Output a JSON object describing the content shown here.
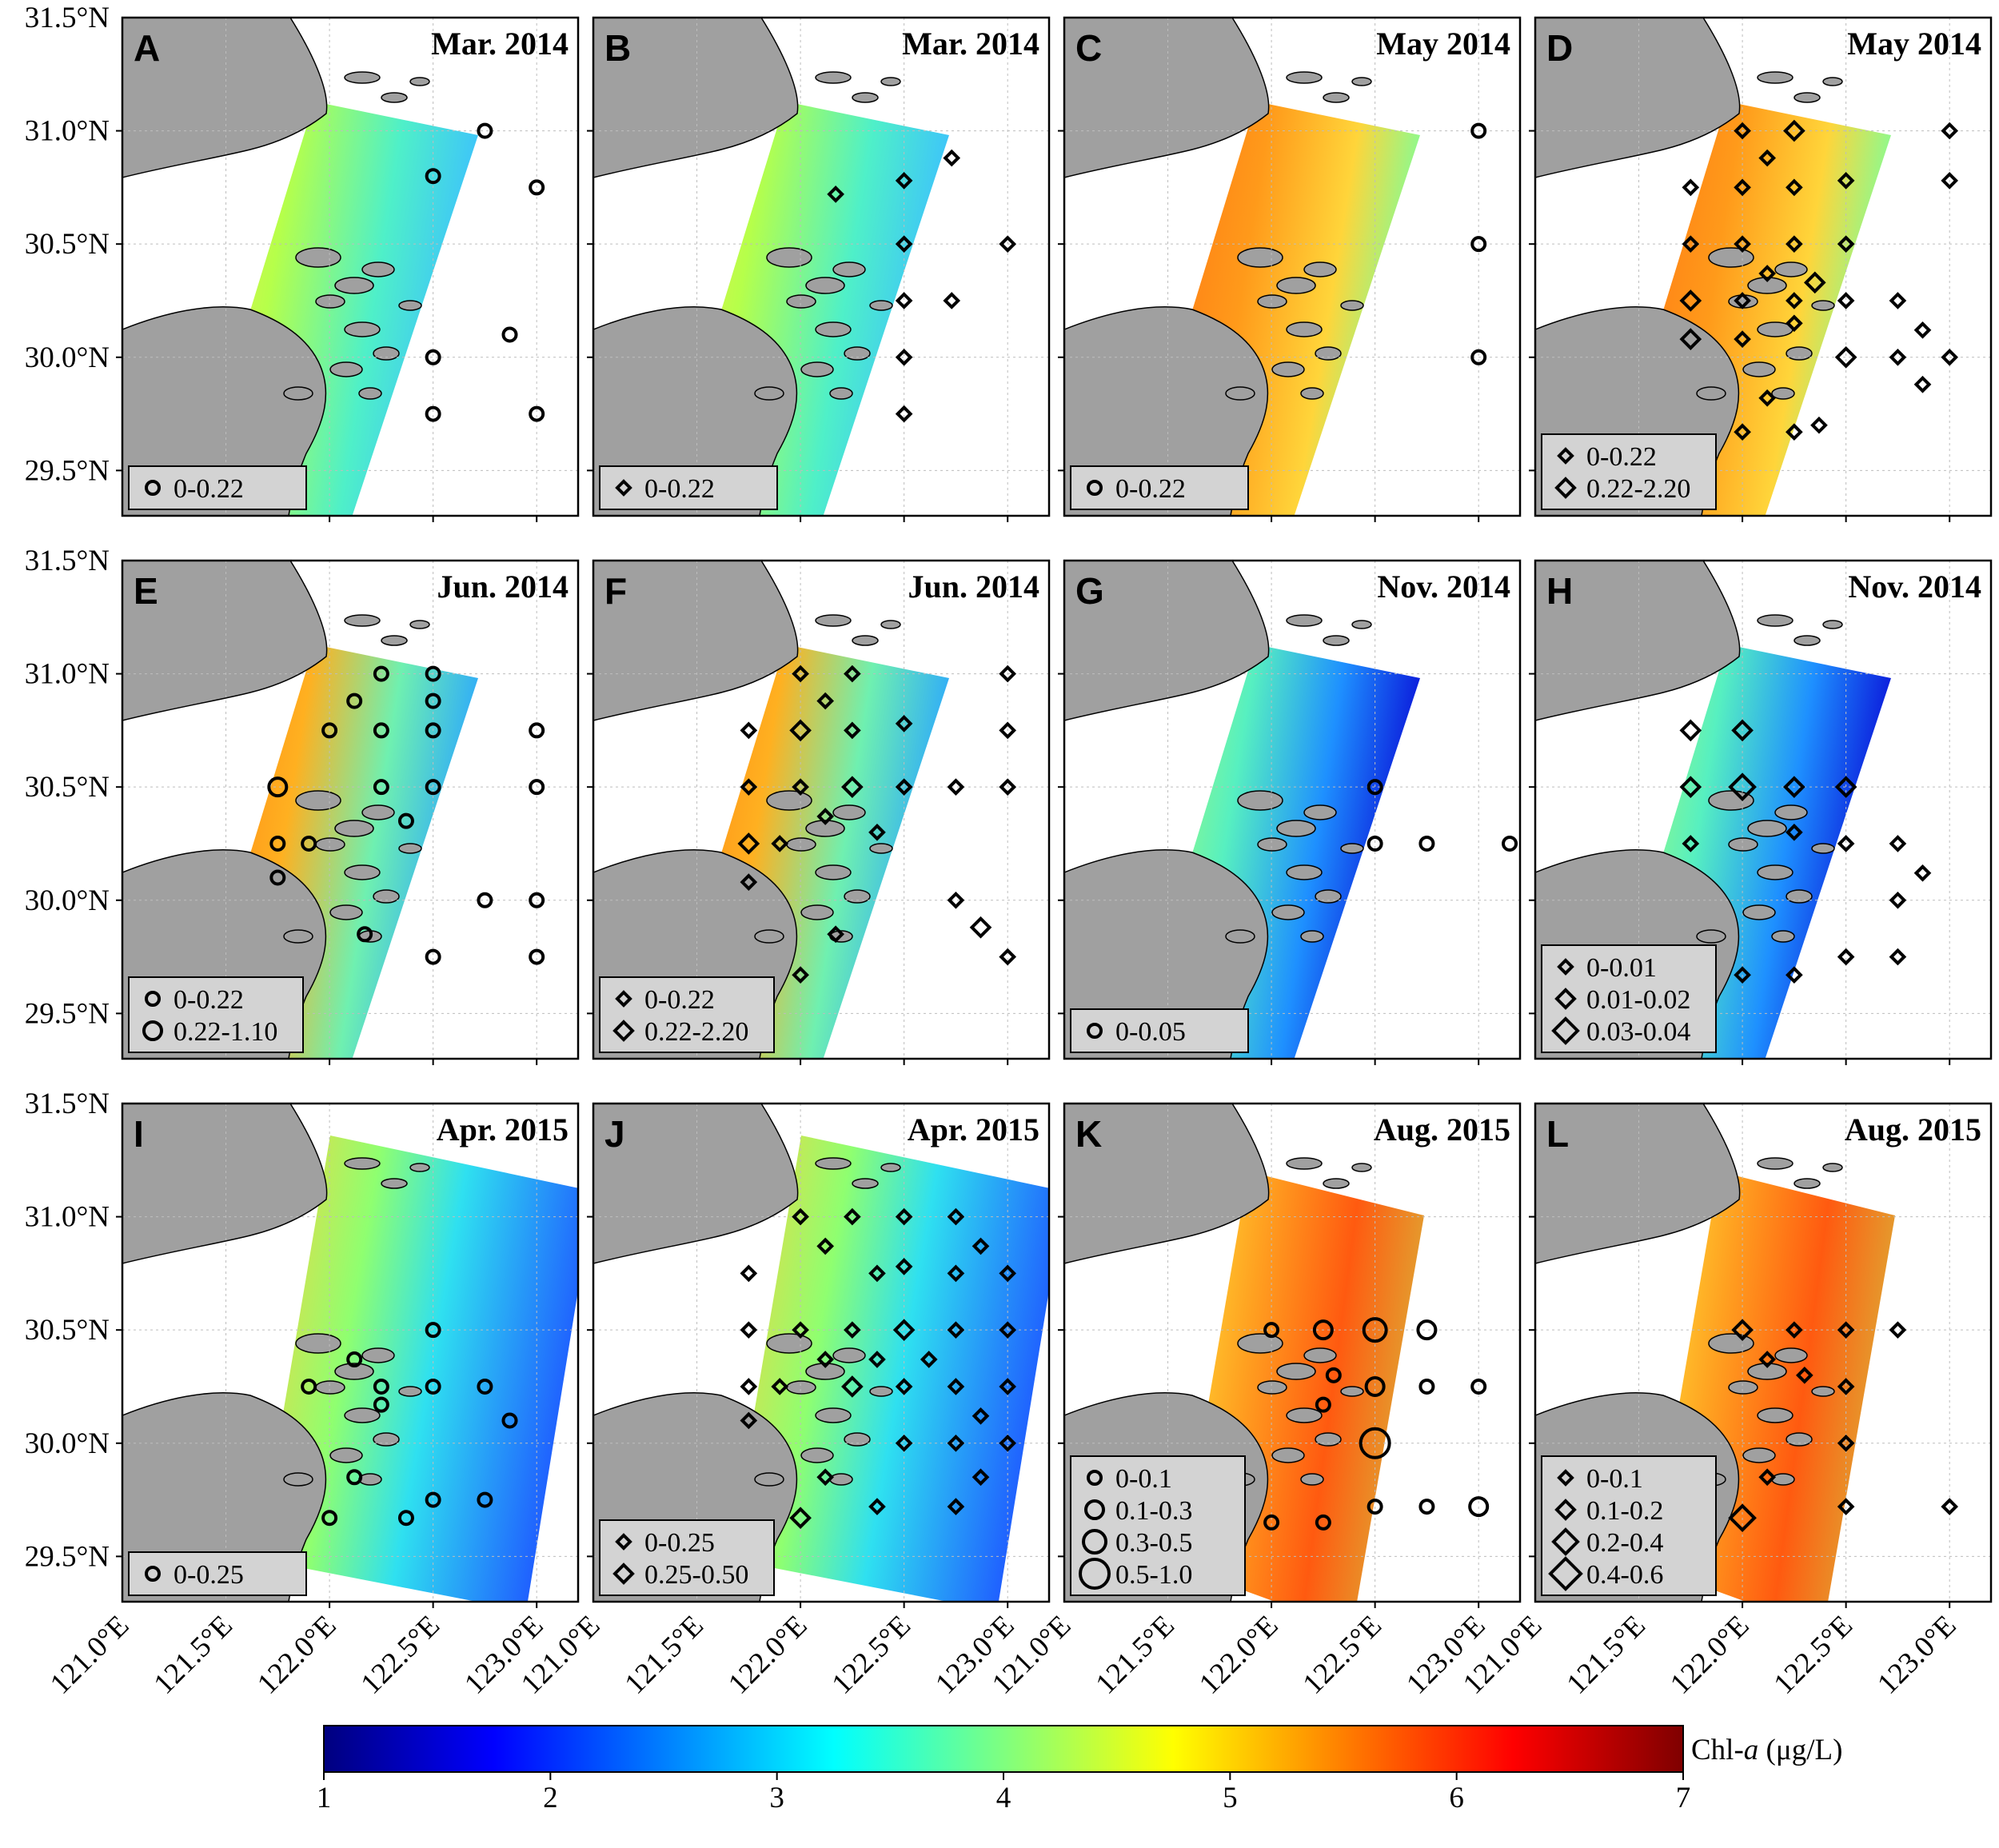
{
  "figure": {
    "y_tick_labels": [
      "31.5°N",
      "31.0°N",
      "30.5°N",
      "30.0°N",
      "29.5°N"
    ],
    "x_tick_labels": [
      "121.0°E",
      "121.5°E",
      "122.0°E",
      "122.5°E",
      "123.0°E"
    ],
    "colorbar": {
      "label_prefix": "Chl-",
      "label_var": "a",
      "label_unit": " (μg/L)",
      "ticks": [
        "1",
        "2",
        "3",
        "4",
        "5",
        "6",
        "7"
      ],
      "colormap": "jet",
      "colors": [
        "#00007f",
        "#0000ff",
        "#007fff",
        "#00ffff",
        "#7fff7f",
        "#ffff00",
        "#ff7f00",
        "#ff0000",
        "#7f0000"
      ]
    },
    "land_color": "#a0a0a0",
    "legend_box_color": "#d3d3d3"
  },
  "panels": [
    {
      "letter": "A",
      "title": "Mar. 2014",
      "tone": "mar",
      "marker": "circle",
      "legend": [
        "0-0.22"
      ],
      "points": [
        [
          122.5,
          30.8,
          0
        ],
        [
          122.75,
          31.0,
          0
        ],
        [
          123.0,
          30.75,
          0
        ],
        [
          122.5,
          30.0,
          0
        ],
        [
          122.87,
          30.1,
          0
        ],
        [
          122.5,
          29.75,
          0
        ],
        [
          123.0,
          29.75,
          0
        ]
      ]
    },
    {
      "letter": "B",
      "title": "Mar. 2014",
      "tone": "mar",
      "marker": "diamond",
      "legend": [
        "0-0.22"
      ],
      "points": [
        [
          122.17,
          30.72,
          0
        ],
        [
          122.5,
          30.78,
          0
        ],
        [
          122.73,
          30.88,
          0
        ],
        [
          122.5,
          30.5,
          0
        ],
        [
          123.0,
          30.5,
          0
        ],
        [
          122.5,
          30.25,
          0
        ],
        [
          122.73,
          30.25,
          0
        ],
        [
          122.5,
          30.0,
          0
        ],
        [
          122.5,
          29.75,
          0
        ]
      ]
    },
    {
      "letter": "C",
      "title": "May 2014",
      "tone": "may",
      "marker": "circle",
      "legend": [
        "0-0.22"
      ],
      "points": [
        [
          123.0,
          31.0,
          0
        ],
        [
          123.0,
          30.5,
          0
        ],
        [
          123.0,
          30.0,
          0
        ]
      ]
    },
    {
      "letter": "D",
      "title": "May 2014",
      "tone": "may",
      "marker": "diamond",
      "legend": [
        "0-0.22",
        "0.22-2.20"
      ],
      "points": [
        [
          122.0,
          31.0,
          0
        ],
        [
          122.25,
          31.0,
          1
        ],
        [
          121.75,
          30.75,
          0
        ],
        [
          122.0,
          30.75,
          0
        ],
        [
          122.12,
          30.88,
          0
        ],
        [
          122.25,
          30.75,
          0
        ],
        [
          122.5,
          30.78,
          0
        ],
        [
          123.0,
          31.0,
          0
        ],
        [
          123.0,
          30.78,
          0
        ],
        [
          121.75,
          30.5,
          0
        ],
        [
          122.0,
          30.5,
          0
        ],
        [
          122.25,
          30.5,
          0
        ],
        [
          122.5,
          30.5,
          0
        ],
        [
          121.75,
          30.25,
          1
        ],
        [
          122.0,
          30.25,
          0
        ],
        [
          122.12,
          30.37,
          0
        ],
        [
          122.25,
          30.25,
          0
        ],
        [
          122.35,
          30.33,
          1
        ],
        [
          122.5,
          30.25,
          0
        ],
        [
          121.75,
          30.08,
          1
        ],
        [
          122.0,
          30.08,
          0
        ],
        [
          122.25,
          30.15,
          0
        ],
        [
          122.5,
          30.0,
          1
        ],
        [
          122.75,
          30.25,
          0
        ],
        [
          122.75,
          30.0,
          0
        ],
        [
          122.87,
          30.12,
          0
        ],
        [
          123.0,
          30.0,
          0
        ],
        [
          122.87,
          29.88,
          0
        ],
        [
          122.0,
          29.67,
          0
        ],
        [
          122.25,
          29.67,
          0
        ],
        [
          122.12,
          29.82,
          0
        ],
        [
          122.37,
          29.7,
          0
        ]
      ]
    },
    {
      "letter": "E",
      "title": "Jun. 2014",
      "tone": "jun",
      "marker": "circle",
      "legend": [
        "0-0.22",
        "0.22-1.10"
      ],
      "points": [
        [
          122.25,
          31.0,
          0
        ],
        [
          122.5,
          31.0,
          0
        ],
        [
          122.12,
          30.88,
          0
        ],
        [
          122.5,
          30.88,
          0
        ],
        [
          122.0,
          30.75,
          0
        ],
        [
          122.25,
          30.75,
          0
        ],
        [
          122.5,
          30.75,
          0
        ],
        [
          123.0,
          30.75,
          0
        ],
        [
          121.75,
          30.5,
          1
        ],
        [
          122.25,
          30.5,
          0
        ],
        [
          122.5,
          30.5,
          0
        ],
        [
          123.0,
          30.5,
          0
        ],
        [
          122.37,
          30.35,
          0
        ],
        [
          121.75,
          30.25,
          0
        ],
        [
          121.9,
          30.25,
          0
        ],
        [
          121.75,
          30.1,
          0
        ],
        [
          122.75,
          30.0,
          0
        ],
        [
          123.0,
          30.0,
          0
        ],
        [
          122.17,
          29.85,
          0
        ],
        [
          122.5,
          29.75,
          0
        ],
        [
          123.0,
          29.75,
          0
        ]
      ]
    },
    {
      "letter": "F",
      "title": "Jun. 2014",
      "tone": "jun",
      "marker": "diamond",
      "legend": [
        "0-0.22",
        "0.22-2.20"
      ],
      "points": [
        [
          122.0,
          31.0,
          0
        ],
        [
          122.25,
          31.0,
          0
        ],
        [
          122.12,
          30.88,
          0
        ],
        [
          121.75,
          30.75,
          0
        ],
        [
          122.0,
          30.75,
          1
        ],
        [
          122.25,
          30.75,
          0
        ],
        [
          122.5,
          30.78,
          0
        ],
        [
          123.0,
          31.0,
          0
        ],
        [
          123.0,
          30.75,
          0
        ],
        [
          121.75,
          30.5,
          0
        ],
        [
          122.0,
          30.5,
          0
        ],
        [
          122.25,
          30.5,
          1
        ],
        [
          122.5,
          30.5,
          0
        ],
        [
          122.75,
          30.5,
          0
        ],
        [
          123.0,
          30.5,
          0
        ],
        [
          121.75,
          30.25,
          1
        ],
        [
          121.9,
          30.25,
          0
        ],
        [
          122.12,
          30.37,
          0
        ],
        [
          122.37,
          30.3,
          0
        ],
        [
          121.75,
          30.08,
          0
        ],
        [
          122.75,
          30.0,
          0
        ],
        [
          122.87,
          29.88,
          1
        ],
        [
          123.0,
          29.75,
          0
        ],
        [
          122.17,
          29.85,
          0
        ],
        [
          122.0,
          29.67,
          0
        ]
      ]
    },
    {
      "letter": "G",
      "title": "Nov. 2014",
      "tone": "nov",
      "marker": "circle",
      "legend": [
        "0-0.05"
      ],
      "points": [
        [
          122.5,
          30.5,
          0
        ],
        [
          122.5,
          30.25,
          0
        ],
        [
          122.75,
          30.25,
          0
        ],
        [
          123.15,
          30.25,
          0
        ]
      ]
    },
    {
      "letter": "H",
      "title": "Nov. 2014",
      "tone": "nov",
      "marker": "diamond",
      "legend": [
        "0-0.01",
        "0.01-0.02",
        "0.03-0.04"
      ],
      "points": [
        [
          121.75,
          30.75,
          1
        ],
        [
          122.0,
          30.75,
          1
        ],
        [
          121.75,
          30.5,
          1
        ],
        [
          122.0,
          30.5,
          2
        ],
        [
          122.25,
          30.5,
          1
        ],
        [
          122.5,
          30.5,
          1
        ],
        [
          121.75,
          30.25,
          0
        ],
        [
          122.25,
          30.3,
          0
        ],
        [
          122.5,
          30.25,
          0
        ],
        [
          122.75,
          30.25,
          0
        ],
        [
          122.87,
          30.12,
          0
        ],
        [
          122.75,
          30.0,
          0
        ],
        [
          122.5,
          29.75,
          0
        ],
        [
          122.75,
          29.75,
          0
        ],
        [
          122.0,
          29.67,
          0
        ],
        [
          122.25,
          29.67,
          0
        ]
      ]
    },
    {
      "letter": "I",
      "title": "Apr. 2015",
      "tone": "apr",
      "marker": "circle",
      "legend": [
        "0-0.25"
      ],
      "points": [
        [
          122.5,
          30.5,
          0
        ],
        [
          122.12,
          30.37,
          0
        ],
        [
          121.9,
          30.25,
          0
        ],
        [
          122.25,
          30.25,
          0
        ],
        [
          122.5,
          30.25,
          0
        ],
        [
          122.75,
          30.25,
          0
        ],
        [
          122.25,
          30.17,
          0
        ],
        [
          122.87,
          30.1,
          0
        ],
        [
          122.12,
          29.85,
          0
        ],
        [
          122.0,
          29.67,
          0
        ],
        [
          122.37,
          29.67,
          0
        ],
        [
          122.5,
          29.75,
          0
        ],
        [
          122.75,
          29.75,
          0
        ]
      ]
    },
    {
      "letter": "J",
      "title": "Apr. 2015",
      "tone": "apr",
      "marker": "diamond",
      "legend": [
        "0-0.25",
        "0.25-0.50"
      ],
      "points": [
        [
          122.0,
          31.0,
          0
        ],
        [
          122.25,
          31.0,
          0
        ],
        [
          122.5,
          31.0,
          0
        ],
        [
          122.75,
          31.0,
          0
        ],
        [
          122.12,
          30.87,
          0
        ],
        [
          122.5,
          30.78,
          0
        ],
        [
          122.87,
          30.87,
          0
        ],
        [
          121.75,
          30.75,
          0
        ],
        [
          122.37,
          30.75,
          0
        ],
        [
          122.75,
          30.75,
          0
        ],
        [
          123.0,
          30.75,
          0
        ],
        [
          121.75,
          30.5,
          0
        ],
        [
          122.0,
          30.5,
          0
        ],
        [
          122.25,
          30.5,
          0
        ],
        [
          122.5,
          30.5,
          1
        ],
        [
          122.75,
          30.5,
          0
        ],
        [
          123.0,
          30.5,
          0
        ],
        [
          122.12,
          30.37,
          0
        ],
        [
          122.37,
          30.37,
          0
        ],
        [
          122.62,
          30.37,
          0
        ],
        [
          121.75,
          30.25,
          0
        ],
        [
          121.9,
          30.25,
          0
        ],
        [
          122.25,
          30.25,
          1
        ],
        [
          122.5,
          30.25,
          0
        ],
        [
          122.75,
          30.25,
          0
        ],
        [
          123.0,
          30.25,
          0
        ],
        [
          121.75,
          30.1,
          0
        ],
        [
          122.87,
          30.12,
          0
        ],
        [
          122.5,
          30.0,
          0
        ],
        [
          122.75,
          30.0,
          0
        ],
        [
          123.0,
          30.0,
          0
        ],
        [
          122.12,
          29.85,
          0
        ],
        [
          122.87,
          29.85,
          0
        ],
        [
          122.0,
          29.67,
          1
        ],
        [
          122.37,
          29.72,
          0
        ],
        [
          122.75,
          29.72,
          0
        ]
      ]
    },
    {
      "letter": "K",
      "title": "Aug. 2015",
      "tone": "aug",
      "marker": "circle",
      "legend": [
        "0-0.1",
        "0.1-0.3",
        "0.3-0.5",
        "0.5-1.0"
      ],
      "points": [
        [
          122.0,
          30.5,
          0
        ],
        [
          122.25,
          30.5,
          1
        ],
        [
          122.5,
          30.5,
          2
        ],
        [
          122.75,
          30.5,
          1
        ],
        [
          122.3,
          30.3,
          0
        ],
        [
          122.25,
          30.17,
          0
        ],
        [
          122.5,
          30.25,
          1
        ],
        [
          122.75,
          30.25,
          0
        ],
        [
          123.0,
          30.25,
          0
        ],
        [
          122.5,
          30.0,
          3
        ],
        [
          122.0,
          29.65,
          0
        ],
        [
          122.25,
          29.65,
          0
        ],
        [
          122.5,
          29.72,
          0
        ],
        [
          122.75,
          29.72,
          0
        ],
        [
          123.0,
          29.72,
          1
        ]
      ]
    },
    {
      "letter": "L",
      "title": "Aug. 2015",
      "tone": "aug",
      "marker": "diamond",
      "legend": [
        "0-0.1",
        "0.1-0.2",
        "0.2-0.4",
        "0.4-0.6"
      ],
      "points": [
        [
          122.0,
          30.5,
          1
        ],
        [
          122.25,
          30.5,
          0
        ],
        [
          122.5,
          30.5,
          0
        ],
        [
          122.75,
          30.5,
          0
        ],
        [
          122.12,
          30.37,
          0
        ],
        [
          122.3,
          30.3,
          0
        ],
        [
          122.5,
          30.25,
          0
        ],
        [
          122.5,
          30.0,
          0
        ],
        [
          122.12,
          29.85,
          0
        ],
        [
          122.0,
          29.67,
          2
        ],
        [
          122.5,
          29.72,
          0
        ],
        [
          123.0,
          29.72,
          0
        ]
      ]
    }
  ]
}
